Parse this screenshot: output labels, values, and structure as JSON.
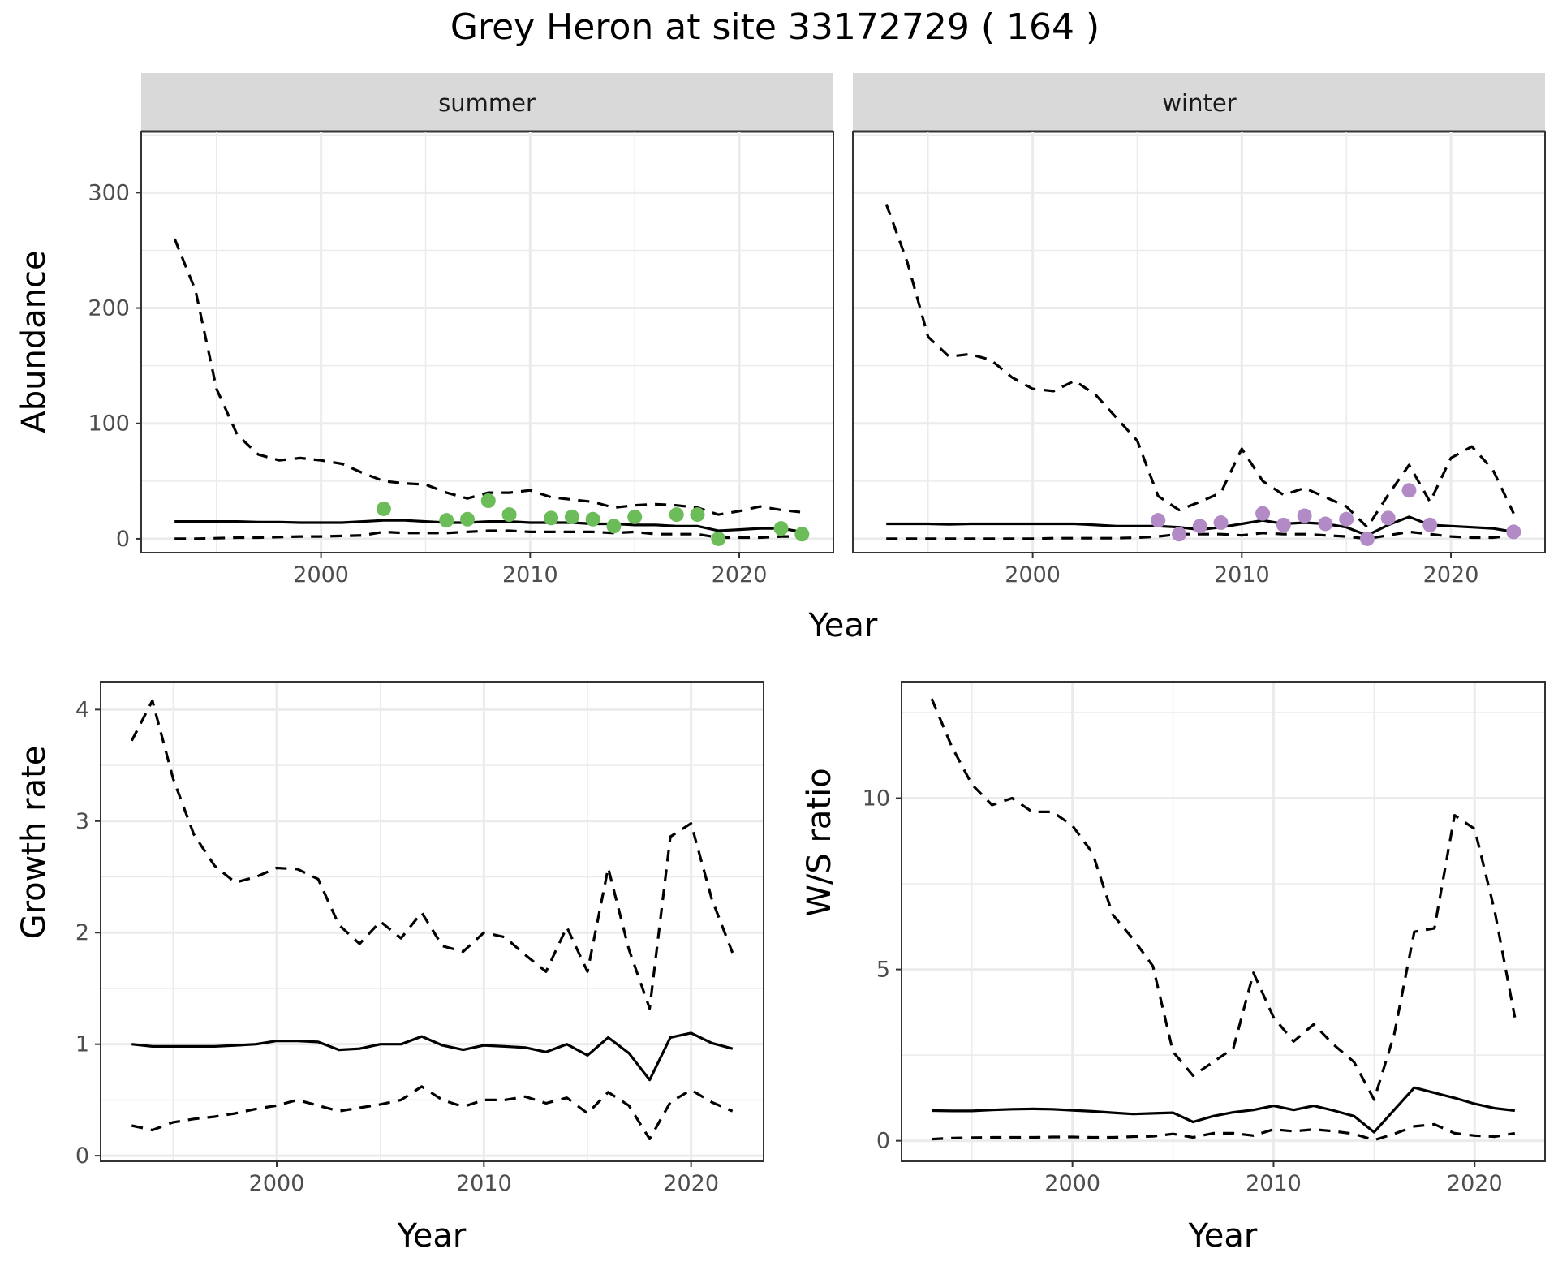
{
  "figure": {
    "title": "Grey Heron at site 33172729 ( 164 )"
  },
  "colors": {
    "summer_points": "#6cbd5a",
    "winter_points": "#b18ac6",
    "strip_bg": "#d9d9d9",
    "lines": "#000000"
  },
  "chart_data": [
    {
      "type": "line",
      "facet": "summer",
      "xlabel": "Year",
      "ylabel": "Abundance",
      "xlim": [
        1991.4,
        2024.5
      ],
      "ylim": [
        -12,
        353
      ],
      "x_ticks": [
        2000,
        2010,
        2020
      ],
      "y_ticks": [
        0,
        100,
        200,
        300
      ],
      "grid": true,
      "series": [
        {
          "role": "estimate",
          "style": "solid",
          "x": [
            1993,
            1994,
            1995,
            1996,
            1997,
            1998,
            1999,
            2000,
            2001,
            2002,
            2003,
            2004,
            2005,
            2006,
            2007,
            2008,
            2009,
            2010,
            2011,
            2012,
            2013,
            2014,
            2015,
            2016,
            2017,
            2018,
            2019,
            2020,
            2021,
            2022,
            2023
          ],
          "y": [
            15,
            15,
            15,
            15,
            14.5,
            14.5,
            14,
            14,
            14,
            15,
            16,
            16,
            15,
            14,
            14,
            15,
            15,
            14,
            14,
            14,
            13,
            13,
            12,
            12,
            11,
            11,
            7,
            8,
            9,
            9,
            6
          ]
        },
        {
          "role": "upper",
          "style": "dashed",
          "x": [
            1993,
            1994,
            1995,
            1996,
            1997,
            1998,
            1999,
            2000,
            2001,
            2002,
            2003,
            2004,
            2005,
            2006,
            2007,
            2008,
            2009,
            2010,
            2011,
            2012,
            2013,
            2014,
            2015,
            2016,
            2017,
            2018,
            2019,
            2020,
            2021,
            2022,
            2023
          ],
          "y": [
            260,
            215,
            130,
            90,
            73,
            68,
            70,
            68,
            65,
            57,
            50,
            48,
            47,
            40,
            35,
            40,
            40,
            42,
            36,
            34,
            32,
            27,
            29,
            30,
            29,
            27,
            21,
            24,
            28,
            25,
            23
          ]
        },
        {
          "role": "lower",
          "style": "dashed",
          "x": [
            1993,
            1994,
            1995,
            1996,
            1997,
            1998,
            1999,
            2000,
            2001,
            2002,
            2003,
            2004,
            2005,
            2006,
            2007,
            2008,
            2009,
            2010,
            2011,
            2012,
            2013,
            2014,
            2015,
            2016,
            2017,
            2018,
            2019,
            2020,
            2021,
            2022,
            2023
          ],
          "y": [
            0,
            0,
            0.5,
            1,
            1,
            1.5,
            2,
            2,
            2.5,
            3,
            6,
            5,
            5,
            5,
            6,
            7,
            7,
            6,
            6,
            6,
            6,
            5,
            6,
            4,
            4,
            4,
            1,
            1,
            1,
            2,
            2
          ]
        }
      ],
      "points": {
        "x": [
          2003,
          2006,
          2007,
          2008,
          2009,
          2011,
          2012,
          2013,
          2014,
          2015,
          2017,
          2018,
          2019,
          2022,
          2023
        ],
        "y": [
          26,
          16,
          17,
          33,
          21,
          18,
          19,
          17,
          11,
          19,
          21,
          21,
          0,
          9,
          4
        ]
      }
    },
    {
      "type": "line",
      "facet": "winter",
      "xlabel": "Year",
      "ylabel": "Abundance",
      "xlim": [
        1991.4,
        2024.5
      ],
      "ylim": [
        -12,
        353
      ],
      "x_ticks": [
        2000,
        2010,
        2020
      ],
      "y_ticks": [
        0,
        100,
        200,
        300
      ],
      "grid": true,
      "series": [
        {
          "role": "estimate",
          "style": "solid",
          "x": [
            1993,
            1994,
            1995,
            1996,
            1997,
            1998,
            1999,
            2000,
            2001,
            2002,
            2003,
            2004,
            2005,
            2006,
            2007,
            2008,
            2009,
            2010,
            2011,
            2012,
            2013,
            2014,
            2015,
            2016,
            2017,
            2018,
            2019,
            2020,
            2021,
            2022,
            2023
          ],
          "y": [
            13,
            13,
            13,
            12.5,
            13,
            13,
            13,
            13,
            13,
            13,
            12,
            11,
            11,
            11,
            10,
            8,
            10,
            13,
            16,
            13,
            14,
            13,
            10,
            3,
            12,
            19,
            12,
            11,
            10,
            9,
            6
          ]
        },
        {
          "role": "upper",
          "style": "dashed",
          "x": [
            1993,
            1994,
            1995,
            1996,
            1997,
            1998,
            1999,
            2000,
            2001,
            2002,
            2003,
            2004,
            2005,
            2006,
            2007,
            2008,
            2009,
            2010,
            2011,
            2012,
            2013,
            2014,
            2015,
            2016,
            2017,
            2018,
            2019,
            2020,
            2021,
            2022,
            2023
          ],
          "y": [
            290,
            240,
            175,
            158,
            160,
            155,
            140,
            130,
            128,
            137,
            125,
            105,
            85,
            37,
            25,
            32,
            40,
            78,
            50,
            38,
            44,
            36,
            28,
            10,
            38,
            64,
            32,
            70,
            80,
            60,
            22
          ]
        },
        {
          "role": "lower",
          "style": "dashed",
          "x": [
            1993,
            1994,
            1995,
            1996,
            1997,
            1998,
            1999,
            2000,
            2001,
            2002,
            2003,
            2004,
            2005,
            2006,
            2007,
            2008,
            2009,
            2010,
            2011,
            2012,
            2013,
            2014,
            2015,
            2016,
            2017,
            2018,
            2019,
            2020,
            2021,
            2022,
            2023
          ],
          "y": [
            0,
            0,
            0,
            0,
            0,
            0,
            0,
            0,
            0.5,
            0.5,
            0.5,
            0.5,
            1,
            2,
            4,
            4,
            4,
            3,
            5,
            4,
            4,
            3,
            2,
            0,
            3,
            6,
            4,
            2,
            1,
            1,
            3
          ]
        }
      ],
      "points": {
        "x": [
          2006,
          2007,
          2008,
          2009,
          2011,
          2012,
          2013,
          2014,
          2015,
          2016,
          2017,
          2018,
          2019,
          2023
        ],
        "y": [
          16,
          4,
          11,
          14,
          22,
          12,
          20,
          13,
          17,
          0,
          18,
          42,
          12,
          6
        ]
      }
    },
    {
      "type": "line",
      "xlabel": "Year",
      "ylabel": "Growth rate",
      "xlim": [
        1991.5,
        2023.5
      ],
      "ylim": [
        -0.05,
        4.25
      ],
      "x_ticks": [
        2000,
        2010,
        2020
      ],
      "y_ticks": [
        0,
        1,
        2,
        3,
        4
      ],
      "grid": true,
      "series": [
        {
          "role": "estimate",
          "style": "solid",
          "x": [
            1993,
            1994,
            1995,
            1996,
            1997,
            1998,
            1999,
            2000,
            2001,
            2002,
            2003,
            2004,
            2005,
            2006,
            2007,
            2008,
            2009,
            2010,
            2011,
            2012,
            2013,
            2014,
            2015,
            2016,
            2017,
            2018,
            2019,
            2020,
            2021,
            2022
          ],
          "y": [
            1.0,
            0.98,
            0.98,
            0.98,
            0.98,
            0.99,
            1.0,
            1.03,
            1.03,
            1.02,
            0.95,
            0.96,
            1.0,
            1.0,
            1.07,
            0.99,
            0.95,
            0.99,
            0.98,
            0.97,
            0.93,
            1.0,
            0.9,
            1.06,
            0.92,
            0.68,
            1.06,
            1.1,
            1.01,
            0.96
          ]
        },
        {
          "role": "upper",
          "style": "dashed",
          "x": [
            1993,
            1994,
            1995,
            1996,
            1997,
            1998,
            1999,
            2000,
            2001,
            2002,
            2003,
            2004,
            2005,
            2006,
            2007,
            2008,
            2009,
            2010,
            2011,
            2012,
            2013,
            2014,
            2015,
            2016,
            2017,
            2018,
            2019,
            2020,
            2021,
            2022
          ],
          "y": [
            3.72,
            4.08,
            3.38,
            2.88,
            2.6,
            2.45,
            2.5,
            2.58,
            2.57,
            2.48,
            2.07,
            1.9,
            2.1,
            1.95,
            2.18,
            1.88,
            1.83,
            2.0,
            1.96,
            1.8,
            1.65,
            2.05,
            1.65,
            2.58,
            1.85,
            1.32,
            2.86,
            2.98,
            2.3,
            1.82
          ]
        },
        {
          "role": "lower",
          "style": "dashed",
          "x": [
            1993,
            1994,
            1995,
            1996,
            1997,
            1998,
            1999,
            2000,
            2001,
            2002,
            2003,
            2004,
            2005,
            2006,
            2007,
            2008,
            2009,
            2010,
            2011,
            2012,
            2013,
            2014,
            2015,
            2016,
            2017,
            2018,
            2019,
            2020,
            2021,
            2022
          ],
          "y": [
            0.27,
            0.23,
            0.3,
            0.33,
            0.35,
            0.38,
            0.42,
            0.45,
            0.5,
            0.45,
            0.4,
            0.43,
            0.46,
            0.5,
            0.62,
            0.5,
            0.44,
            0.5,
            0.5,
            0.53,
            0.47,
            0.52,
            0.38,
            0.57,
            0.45,
            0.15,
            0.48,
            0.59,
            0.48,
            0.4
          ]
        }
      ]
    },
    {
      "type": "line",
      "xlabel": "Year",
      "ylabel": "W/S ratio",
      "xlim": [
        1991.5,
        2023.5
      ],
      "ylim": [
        -0.6,
        13.4
      ],
      "x_ticks": [
        2000,
        2010,
        2020
      ],
      "y_ticks": [
        0,
        5,
        10
      ],
      "grid": true,
      "series": [
        {
          "role": "estimate",
          "style": "solid",
          "x": [
            1993,
            1994,
            1995,
            1996,
            1997,
            1998,
            1999,
            2000,
            2001,
            2002,
            2003,
            2004,
            2005,
            2006,
            2007,
            2008,
            2009,
            2010,
            2011,
            2012,
            2013,
            2014,
            2015,
            2016,
            2017,
            2018,
            2019,
            2020,
            2021,
            2022
          ],
          "y": [
            0.88,
            0.87,
            0.87,
            0.9,
            0.92,
            0.93,
            0.92,
            0.89,
            0.86,
            0.82,
            0.78,
            0.8,
            0.82,
            0.55,
            0.72,
            0.83,
            0.9,
            1.02,
            0.9,
            1.02,
            0.88,
            0.72,
            0.25,
            0.9,
            1.55,
            1.4,
            1.25,
            1.08,
            0.95,
            0.88
          ]
        },
        {
          "role": "upper",
          "style": "dashed",
          "x": [
            1993,
            1994,
            1995,
            1996,
            1997,
            1998,
            1999,
            2000,
            2001,
            2002,
            2003,
            2004,
            2005,
            2006,
            2007,
            2008,
            2009,
            2010,
            2011,
            2012,
            2013,
            2014,
            2015,
            2016,
            2017,
            2018,
            2019,
            2020,
            2021,
            2022
          ],
          "y": [
            12.9,
            11.5,
            10.4,
            9.8,
            10.0,
            9.6,
            9.6,
            9.2,
            8.4,
            6.6,
            5.9,
            5.1,
            2.6,
            1.9,
            2.3,
            2.7,
            4.9,
            3.6,
            2.9,
            3.4,
            2.8,
            2.3,
            1.2,
            3.1,
            6.1,
            6.2,
            9.5,
            9.1,
            6.7,
            3.6
          ]
        },
        {
          "role": "lower",
          "style": "dashed",
          "x": [
            1993,
            1994,
            1995,
            1996,
            1997,
            1998,
            1999,
            2000,
            2001,
            2002,
            2003,
            2004,
            2005,
            2006,
            2007,
            2008,
            2009,
            2010,
            2011,
            2012,
            2013,
            2014,
            2015,
            2016,
            2017,
            2018,
            2019,
            2020,
            2021,
            2022
          ],
          "y": [
            0.05,
            0.08,
            0.09,
            0.1,
            0.1,
            0.1,
            0.11,
            0.11,
            0.1,
            0.1,
            0.12,
            0.13,
            0.2,
            0.1,
            0.22,
            0.22,
            0.15,
            0.33,
            0.28,
            0.33,
            0.28,
            0.2,
            0.02,
            0.2,
            0.42,
            0.48,
            0.22,
            0.15,
            0.12,
            0.22
          ]
        }
      ]
    }
  ]
}
